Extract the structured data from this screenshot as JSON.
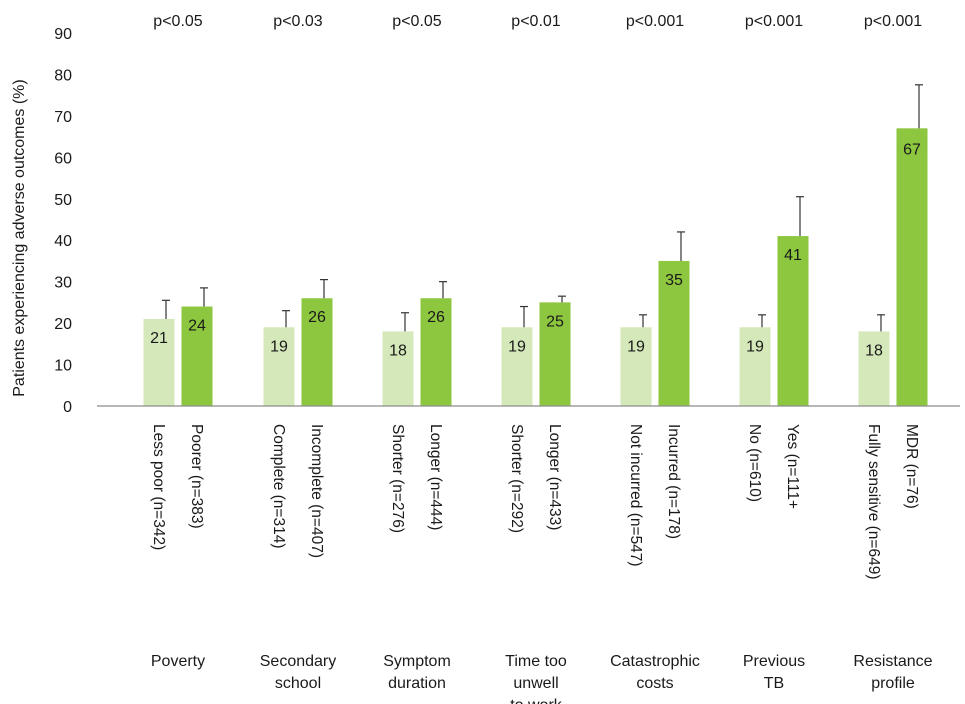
{
  "chart_data": {
    "type": "bar",
    "ylabel": "Patients experiencing adverse outcomes (%)",
    "ylim": [
      0,
      90
    ],
    "yticks": [
      "0",
      "10",
      "20",
      "30",
      "40",
      "50",
      "60",
      "70",
      "80",
      "90"
    ],
    "grid": false,
    "colors": {
      "light": "#d5e8b9",
      "dark": "#8dc63f",
      "axis": "#8c8c8c",
      "error": "#333333"
    },
    "groups": [
      {
        "label": [
          "Poverty"
        ],
        "pvalue": "p<0.05",
        "bars": [
          {
            "category": "Less poor (n=342)",
            "value": 21,
            "value_label": "21",
            "err_upper": 25.5,
            "color": "light"
          },
          {
            "category": "Poorer (n=383)",
            "value": 24,
            "value_label": "24",
            "err_upper": 28.5,
            "color": "dark"
          }
        ]
      },
      {
        "label": [
          "Secondary",
          "school"
        ],
        "pvalue": "p<0.03",
        "bars": [
          {
            "category": "Complete (n=314)",
            "value": 19,
            "value_label": "19",
            "err_upper": 23,
            "color": "light"
          },
          {
            "category": "Incomplete (n=407)",
            "value": 26,
            "value_label": "26",
            "err_upper": 30.5,
            "color": "dark"
          }
        ]
      },
      {
        "label": [
          "Symptom",
          "duration"
        ],
        "pvalue": "p<0.05",
        "bars": [
          {
            "category": "Shorter (n=276)",
            "value": 18,
            "value_label": "18",
            "err_upper": 22.5,
            "color": "light"
          },
          {
            "category": "Longer (n=444)",
            "value": 26,
            "value_label": "26",
            "err_upper": 30,
            "color": "dark"
          }
        ]
      },
      {
        "label": [
          "Time too",
          "unwell",
          "to work"
        ],
        "pvalue": "p<0.01",
        "bars": [
          {
            "category": "Shorter (n=292)",
            "value": 19,
            "value_label": "19",
            "err_upper": 24,
            "color": "light"
          },
          {
            "category": "Longer (n=433)",
            "value": 25,
            "value_label": "25",
            "err_upper": 26.5,
            "color": "dark"
          }
        ]
      },
      {
        "label": [
          "Catastrophic",
          "costs"
        ],
        "pvalue": "p<0.001",
        "bars": [
          {
            "category": "Not incurred (n=547)",
            "value": 19,
            "value_label": "19",
            "err_upper": 22,
            "color": "light"
          },
          {
            "category": "Incurred (n=178)",
            "value": 35,
            "value_label": "35",
            "err_upper": 42,
            "color": "dark"
          }
        ]
      },
      {
        "label": [
          "Previous",
          "TB"
        ],
        "pvalue": "p<0.001",
        "bars": [
          {
            "category": "No (n=610)",
            "value": 19,
            "value_label": "19",
            "err_upper": 22,
            "color": "light"
          },
          {
            "category": "Yes (n=111+",
            "value": 41,
            "value_label": "41",
            "err_upper": 50.5,
            "color": "dark"
          }
        ]
      },
      {
        "label": [
          "Resistance",
          "profile"
        ],
        "pvalue": "p<0.001",
        "bars": [
          {
            "category": "Fully sensitive (n=649)",
            "value": 18,
            "value_label": "18",
            "err_upper": 22,
            "color": "light"
          },
          {
            "category": "MDR (n=76)",
            "value": 67,
            "value_label": "67",
            "err_upper": 77.5,
            "color": "dark"
          }
        ]
      }
    ]
  }
}
